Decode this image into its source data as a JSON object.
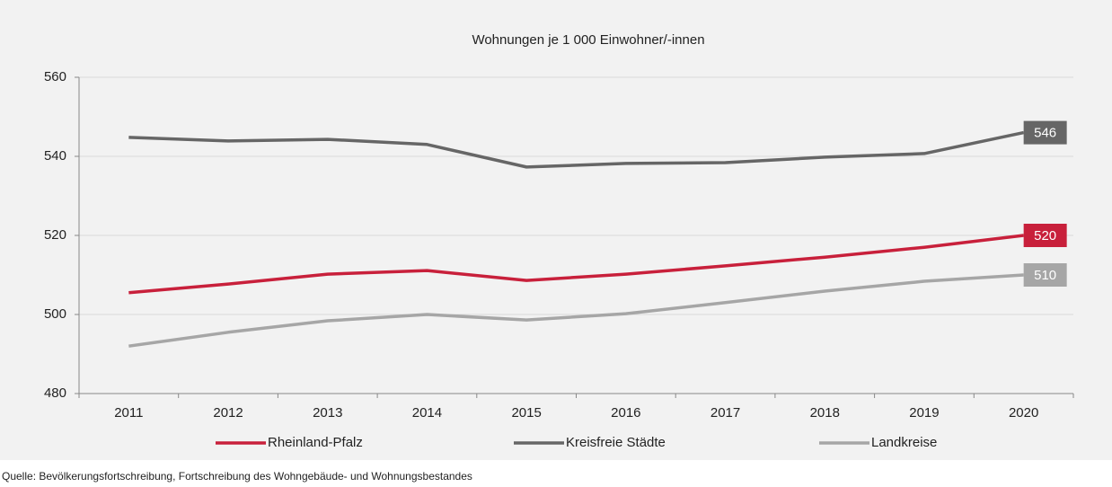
{
  "chart_data": {
    "type": "line",
    "title": "Wohnungen je 1 000 Einwohner/-innen",
    "source": "Quelle: Bevölkerungsfortschreibung, Fortschreibung des Wohngebäude- und Wohnungsbestandes",
    "categories": [
      "2011",
      "2012",
      "2013",
      "2014",
      "2015",
      "2016",
      "2017",
      "2018",
      "2019",
      "2020"
    ],
    "series": [
      {
        "name": "Rheinland-Pfalz",
        "color": "#c8203b",
        "values": [
          505.5,
          507.7,
          510.2,
          511.1,
          508.6,
          510.2,
          512.3,
          514.5,
          517.0,
          520
        ]
      },
      {
        "name": "Kreisfreie Städte",
        "color": "#666666",
        "values": [
          544.8,
          543.9,
          544.3,
          543.0,
          537.3,
          538.2,
          538.4,
          539.8,
          540.7,
          546
        ]
      },
      {
        "name": "Landkreise",
        "color": "#a6a6a6",
        "values": [
          492.0,
          495.5,
          498.4,
          500.0,
          498.6,
          500.2,
          503.0,
          505.9,
          508.4,
          510
        ]
      }
    ],
    "ylim": [
      480,
      560
    ],
    "yticks": [
      480,
      500,
      520,
      540,
      560
    ],
    "grid": true,
    "legend": "bottom"
  }
}
